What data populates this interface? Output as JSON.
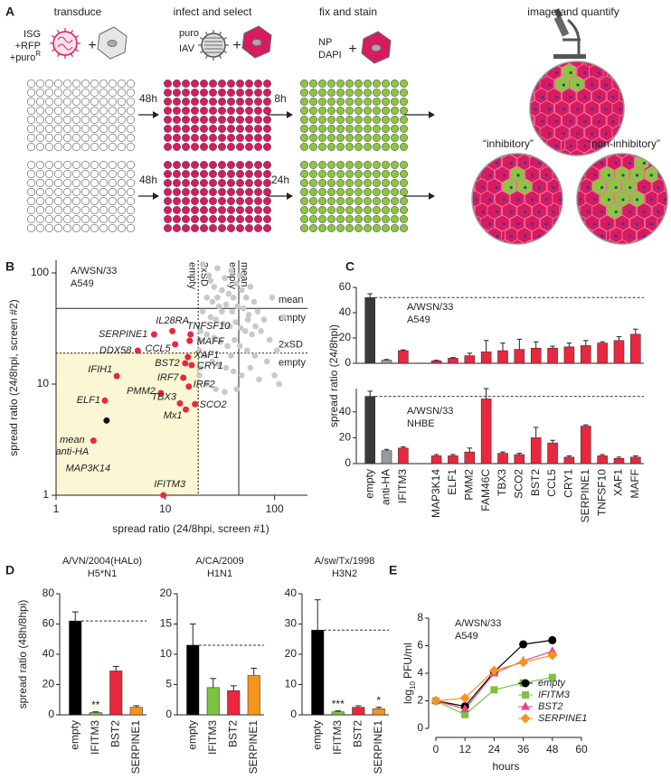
{
  "panel_labels": [
    "A",
    "B",
    "C",
    "D",
    "E"
  ],
  "diagram": {
    "steps": [
      "transduce",
      "infect and select",
      "fix and stain",
      "image and quantify"
    ],
    "transduce_reagents": [
      "ISG",
      "+RFP",
      "+puro"
    ],
    "resistance_superscript": "R",
    "infect_reagents": [
      "puro",
      "IAV"
    ],
    "stain_reagents": [
      "NP",
      "DAPI"
    ],
    "plus": "+",
    "row_times": [
      [
        "48h",
        "8h"
      ],
      [
        "48h",
        "24h"
      ]
    ],
    "outcomes": [
      "“inhibitory”",
      "“non-inhibitory”"
    ]
  },
  "chart_data": [
    {
      "type": "scatter",
      "xlabel": "spread ratio (24/8hpi, screen #1)",
      "ylabel": "spread ratio (24/8hpi, screen #2)",
      "annotation": [
        "A/WSN/33",
        "A549"
      ],
      "xscale": "log",
      "yscale": "log",
      "xlim": [
        1,
        200
      ],
      "ylim": [
        1,
        130
      ],
      "xticks": [
        1,
        10,
        100
      ],
      "yticks": [
        1,
        10,
        100
      ],
      "reference_lines": [
        {
          "axis": "x",
          "value": 47,
          "label": [
            "mean",
            "empty"
          ],
          "style": "solid"
        },
        {
          "axis": "x",
          "value": 20,
          "label": [
            "2xSD",
            "empty"
          ],
          "style": "dashed"
        },
        {
          "axis": "y",
          "value": 48,
          "label": [
            "mean",
            "empty"
          ],
          "style": "solid"
        },
        {
          "axis": "y",
          "value": 19,
          "label": [
            "2xSD",
            "empty"
          ],
          "style": "dashed"
        }
      ],
      "highlight_color": "#fbf7d4",
      "series": [
        {
          "color": "#c9c9c9",
          "x": [
            22,
            25,
            30,
            35,
            40,
            45,
            28,
            33,
            38,
            42,
            50,
            55,
            60,
            65,
            24,
            27,
            31,
            36,
            41,
            46,
            52,
            58,
            70,
            80,
            22,
            26,
            29,
            34,
            39,
            44,
            49,
            54,
            62,
            75,
            90,
            21,
            24,
            28,
            32,
            37,
            43,
            48,
            56,
            66,
            85,
            20.5,
            23,
            27,
            31,
            36,
            42,
            50,
            60,
            72,
            100,
            20.5,
            24,
            29,
            35,
            45,
            110,
            40,
            33,
            26,
            48,
            57,
            67,
            20.5,
            21,
            30,
            120,
            95,
            105
          ],
          "y": [
            120,
            95,
            110,
            90,
            105,
            80,
            75,
            70,
            65,
            60,
            70,
            60,
            75,
            55,
            60,
            55,
            50,
            52,
            45,
            50,
            48,
            42,
            45,
            38,
            45,
            40,
            38,
            35,
            33,
            36,
            32,
            30,
            28,
            30,
            25,
            30,
            28,
            26,
            24,
            22,
            25,
            22,
            20,
            18,
            16,
            20,
            18,
            16,
            15,
            14,
            13,
            12,
            14,
            11,
            12,
            12,
            10,
            9,
            8.5,
            9,
            10,
            18,
            45,
            85,
            95,
            38,
            33,
            25,
            14,
            60,
            40,
            60,
            20
          ]
        },
        {
          "color": "#e8283f",
          "labels": [
            "SERPINE1",
            "IL28RA",
            "TNFSF10",
            "MAFF",
            "CCL5",
            "XAF1",
            "BST2",
            "CRY1",
            "IRF7",
            "IRF2",
            "DDX58",
            "IFIH1",
            "PMM2",
            "ELF1",
            "TBX3",
            "Mx1",
            "SCO2",
            "MAP3K14",
            "IFITM3"
          ],
          "x": [
            7.9,
            11.6,
            17,
            16.7,
            12.3,
            16.1,
            15.2,
            17.4,
            14.6,
            16.4,
            5.6,
            3.6,
            9.1,
            2.8,
            13.6,
            15.4,
            18.7,
            2.2,
            9.6
          ],
          "y": [
            28,
            30,
            28,
            24.5,
            22.8,
            17.5,
            15.4,
            14.8,
            11.4,
            9.5,
            20,
            11.8,
            8.3,
            7.1,
            6.7,
            5.9,
            6.6,
            3.1,
            1.0
          ]
        },
        {
          "color": "#111111",
          "labels": [
            [
              "mean",
              "anti-HA"
            ]
          ],
          "x": [
            2.9
          ],
          "y": [
            4.7
          ]
        }
      ]
    },
    {
      "type": "bar",
      "ylabel": "spread ratio (24/8hpi)",
      "annotation": [
        "A/WSN/33",
        "A549"
      ],
      "values": [
        52,
        2.5,
        10,
        null,
        2,
        4,
        6,
        9,
        10,
        11,
        12,
        12,
        13,
        14,
        16,
        18,
        23
      ],
      "errors": [
        3,
        0.5,
        0.6,
        null,
        0.4,
        0.5,
        2,
        9,
        6,
        8,
        5,
        1.5,
        3,
        4,
        1,
        3,
        4
      ],
      "colors": [
        "#3a3a3a",
        "#9a9a9a",
        "#e8283f",
        null,
        "#e8283f",
        "#e8283f",
        "#e8283f",
        "#e8283f",
        "#e8283f",
        "#e8283f",
        "#e8283f",
        "#e8283f",
        "#e8283f",
        "#e8283f",
        "#e8283f",
        "#e8283f",
        "#e8283f"
      ],
      "ylim": [
        0,
        60
      ],
      "yticks": [
        0,
        20,
        40,
        60
      ],
      "dashed_reference": true
    },
    {
      "type": "bar",
      "annotation": [
        "A/WSN/33",
        "NHBE"
      ],
      "categories": [
        "empty",
        "anti-HA",
        "IFITM3",
        null,
        "MAP3K14",
        "ELF1",
        "PMM2",
        "FAM46C",
        "TBX3",
        "SCO2",
        "BST2",
        "CCL5",
        "CRY1",
        "SERPINE1",
        "TNFSF10",
        "XAF1",
        "MAFF"
      ],
      "values": [
        52,
        10,
        12,
        null,
        6,
        6,
        9,
        50,
        8,
        7,
        20,
        16,
        5,
        29,
        6,
        4,
        5
      ],
      "errors": [
        4,
        1,
        1,
        null,
        1,
        1,
        3,
        8,
        1,
        1,
        8,
        2,
        1,
        1,
        1,
        1,
        1
      ],
      "colors": [
        "#3a3a3a",
        "#9a9a9a",
        "#e8283f",
        null,
        "#e8283f",
        "#e8283f",
        "#e8283f",
        "#e8283f",
        "#e8283f",
        "#e8283f",
        "#e8283f",
        "#e8283f",
        "#e8283f",
        "#e8283f",
        "#e8283f",
        "#e8283f",
        "#e8283f"
      ],
      "ylim": [
        0,
        58
      ],
      "yticks": [
        0,
        20,
        40
      ],
      "dashed_reference": true
    },
    {
      "type": "bar",
      "title": [
        "A/VN/2004(HALo)",
        "H5*N1"
      ],
      "ylabel": "spread ratio (48h/8hpi)",
      "categories": [
        "empty",
        "IFITM3",
        "BST2",
        "SERPINE1"
      ],
      "values": [
        62,
        1.5,
        29,
        5
      ],
      "errors": [
        6,
        0.5,
        3,
        1
      ],
      "colors": [
        "#000000",
        "#7dc242",
        "#e8283f",
        "#f7941d"
      ],
      "significance": [
        null,
        "**",
        null,
        null
      ],
      "ylim": [
        0,
        80
      ],
      "yticks": [
        0,
        20,
        40,
        60,
        80
      ],
      "dashed_reference": true
    },
    {
      "type": "bar",
      "title": [
        "A/CA/2009",
        "H1N1"
      ],
      "categories": [
        "empty",
        "IFITM3",
        "BST2",
        "SERPINE1"
      ],
      "values": [
        11.5,
        4.5,
        4,
        6.5
      ],
      "errors": [
        3.5,
        1.5,
        0.8,
        1.2
      ],
      "colors": [
        "#000000",
        "#7dc242",
        "#e8283f",
        "#f7941d"
      ],
      "ylim": [
        0,
        20
      ],
      "yticks": [
        0,
        5,
        10,
        15,
        20
      ],
      "dashed_reference": true
    },
    {
      "type": "bar",
      "title": [
        "A/sw/Tx/1998",
        "H3N2"
      ],
      "categories": [
        "empty",
        "IFITM3",
        "BST2",
        "SERPINE1"
      ],
      "values": [
        28,
        1,
        2.5,
        2
      ],
      "errors": [
        10,
        0.3,
        0.5,
        0.5
      ],
      "colors": [
        "#000000",
        "#7dc242",
        "#e8283f",
        "#f7941d"
      ],
      "significance": [
        null,
        "***",
        null,
        "*"
      ],
      "ylim": [
        0,
        40
      ],
      "yticks": [
        0,
        10,
        20,
        30,
        40
      ],
      "dashed_reference": true
    },
    {
      "type": "line",
      "annotation": [
        "A/WSN/33",
        "A549"
      ],
      "xlabel": "hours",
      "ylabel_parts": [
        "log",
        "10",
        "PFU/ml"
      ],
      "x": [
        0,
        12,
        24,
        36,
        48
      ],
      "xlim": [
        0,
        60
      ],
      "xticks": [
        0,
        12,
        24,
        36,
        48,
        60
      ],
      "ylim": [
        0,
        8
      ],
      "yticks": [
        0,
        2,
        4,
        6,
        8
      ],
      "legend": "lower right",
      "series": [
        {
          "name": "empty",
          "color": "#000000",
          "marker": "circle",
          "values": [
            2,
            1.6,
            4.1,
            6.1,
            6.4
          ]
        },
        {
          "name": "IFITM3",
          "color": "#7dc242",
          "marker": "square",
          "values": [
            2,
            1.0,
            2.8,
            3.3,
            3.7
          ]
        },
        {
          "name": "BST2",
          "color": "#e8467c",
          "marker": "triangle",
          "values": [
            2,
            1.4,
            4.0,
            4.9,
            5.6
          ]
        },
        {
          "name": "SERPINE1",
          "color": "#f7941d",
          "marker": "diamond",
          "values": [
            2,
            2.2,
            4.2,
            4.8,
            5.3
          ]
        }
      ]
    }
  ]
}
